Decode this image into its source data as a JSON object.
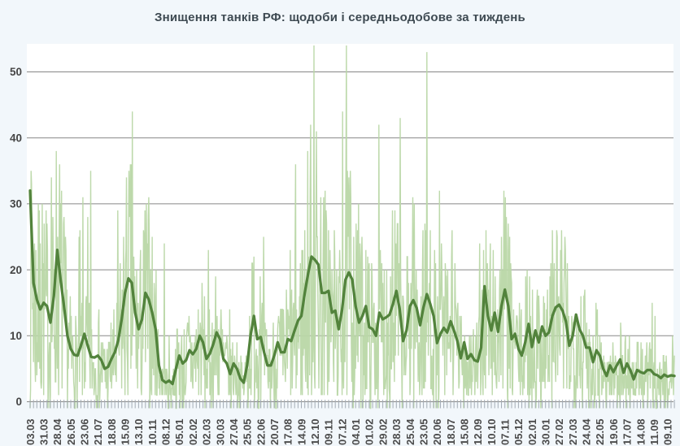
{
  "chart_data": {
    "type": "line",
    "title": "Знищення танків РФ: щодоби і середньодобове за тиждень",
    "grid": true,
    "legend": "none",
    "x_axis": {
      "start_label": "03.03",
      "end_label": "09.10",
      "label_every_days": 28,
      "minor_tick_every_days": 7,
      "tick_labels": [
        "03.03",
        "31.03",
        "28.04",
        "26.05",
        "23.06",
        "21.07",
        "18.08",
        "15.09",
        "13.10",
        "10.11",
        "08.12",
        "05.01",
        "02.02",
        "02.03",
        "30.03",
        "27.04",
        "25.05",
        "22.06",
        "20.07",
        "17.08",
        "14.09",
        "12.10",
        "09.11",
        "07.12",
        "04.01",
        "01.02",
        "29.02",
        "28.03",
        "25.04",
        "23.05",
        "20.06",
        "18.07",
        "15.08",
        "12.09",
        "10.10",
        "07.11",
        "05.12",
        "02.01",
        "30.01",
        "27.02",
        "27.03",
        "24.04",
        "22.05",
        "19.06",
        "17.07",
        "14.08",
        "11.09",
        "09.10"
      ]
    },
    "y_axis": {
      "ticks": [
        0,
        10,
        20,
        30,
        40,
        50
      ],
      "max": 54
    },
    "series": [
      {
        "name": "щодоби",
        "kind": "daily",
        "color": "#b9d7a7",
        "spikes_day_value": [
          [
            2,
            35
          ],
          [
            17,
            30
          ],
          [
            25,
            30
          ],
          [
            44,
            34
          ],
          [
            125,
            35
          ],
          [
            211,
            44
          ],
          [
            277,
            24
          ],
          [
            475,
            19
          ],
          [
            537,
            23
          ],
          [
            547,
            24
          ],
          [
            579,
            42
          ],
          [
            586,
            54
          ],
          [
            645,
            44
          ],
          [
            678,
            30
          ],
          [
            748,
            29
          ],
          [
            790,
            31
          ],
          [
            815,
            27
          ],
          [
            849,
            24
          ],
          [
            871,
            26
          ],
          [
            950,
            24
          ],
          [
            973,
            25
          ],
          [
            1075,
            21
          ],
          [
            1105,
            23
          ],
          [
            1168,
            15
          ],
          [
            1326,
            10
          ]
        ],
        "noise": {
          "seed": 7,
          "power": 1.3,
          "scale": 2.05,
          "outlier_p": 0.985,
          "outlier_mult": 1.6,
          "max": 54
        }
      },
      {
        "name": "середньодобове за тиждень",
        "kind": "weekly_moving_average",
        "color": "#52833c",
        "week_values": [
          32,
          18,
          15.5,
          14,
          15,
          14.5,
          12,
          16,
          23,
          18.5,
          14.5,
          10,
          8,
          7.1,
          7,
          8.5,
          10.3,
          8.5,
          6.8,
          6.7,
          7,
          6.3,
          5,
          5.3,
          6.5,
          7.5,
          9.3,
          12.5,
          16.5,
          18.7,
          18,
          13.5,
          11,
          12.5,
          16.5,
          15.5,
          13.5,
          11,
          5.5,
          3.3,
          2.9,
          3.2,
          2.7,
          5,
          7,
          5.8,
          6.3,
          7.8,
          7.2,
          8,
          10,
          9,
          6.5,
          7.3,
          8.7,
          10.5,
          9.5,
          6.5,
          5.8,
          4.2,
          5.8,
          5,
          3.5,
          2.9,
          5.5,
          10,
          13,
          9.5,
          9.8,
          7.5,
          5.5,
          5.5,
          7,
          9,
          7.5,
          7.5,
          9.5,
          9.2,
          10.8,
          12.3,
          13,
          16.5,
          19.5,
          22,
          21.5,
          20.8,
          16.5,
          16.5,
          16.8,
          13.5,
          13.8,
          11,
          14,
          18.5,
          19.6,
          18.5,
          14.5,
          12,
          13,
          14.5,
          11.3,
          11,
          10,
          13.5,
          12.5,
          12.8,
          13.2,
          14.8,
          16.8,
          14,
          9.2,
          10.8,
          14.5,
          15.4,
          14.2,
          11.6,
          14.3,
          16.3,
          14.8,
          13,
          8.9,
          10.3,
          11.2,
          10.5,
          12.2,
          10.8,
          9.2,
          6.6,
          9,
          6.5,
          7.2,
          6.3,
          6.1,
          8.2,
          17.5,
          13,
          10.8,
          13.5,
          10.6,
          14.5,
          17,
          14.5,
          9.5,
          10.3,
          8,
          7,
          9,
          11.8,
          8.3,
          10.8,
          9,
          11.4,
          10,
          10.5,
          13,
          14.3,
          14.7,
          13.8,
          12.2,
          8.5,
          10,
          13.2,
          11,
          10,
          8.2,
          8.2,
          6,
          7.8,
          7,
          5,
          3.9,
          5.5,
          4.5,
          5.5,
          6.4,
          4.4,
          5.8,
          4.8,
          3.4,
          4.8,
          4.5,
          4.3,
          4.8,
          4.8,
          4.2,
          4,
          3.6,
          4.1,
          3.8,
          4,
          3.9
        ]
      }
    ],
    "colors": {
      "background": "#f2f7fb",
      "plot_background": "#ffffff",
      "gridline": "#878787",
      "tick": "#a4adb6",
      "label": "#4b4b4b",
      "title": "#3e4a52"
    }
  }
}
